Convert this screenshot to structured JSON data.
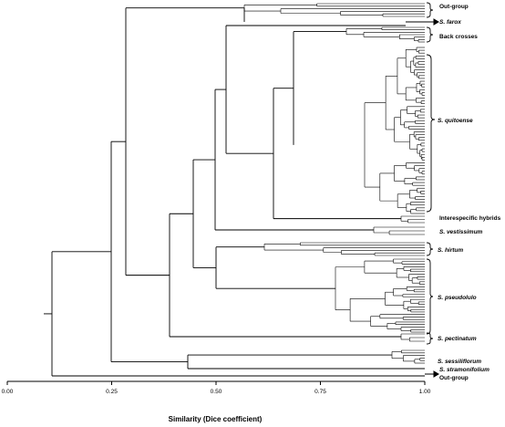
{
  "axis": {
    "title": "Similarity (Dice coefficient)",
    "ticks": [
      "0.00",
      "0.25",
      "0.50",
      "0.75",
      "1.00"
    ],
    "tick_values": [
      0,
      0.25,
      0.5,
      0.75,
      1.0
    ],
    "range": [
      0,
      1
    ]
  },
  "groups": [
    {
      "id": "outgroup-top",
      "label": "Out-group",
      "italic": false
    },
    {
      "id": "s-farox",
      "label": "S. farox",
      "italic": true
    },
    {
      "id": "back-crosses",
      "label": "Back crosses",
      "italic": false
    },
    {
      "id": "s-quitoense",
      "label": "S. quitoense",
      "italic": true
    },
    {
      "id": "interspecific-hybrids",
      "label": "Interespecific hybrids",
      "italic": false
    },
    {
      "id": "s-vestissimum",
      "label": "S. vestissimum",
      "italic": true
    },
    {
      "id": "s-hirtum",
      "label": "S. hirtum",
      "italic": true
    },
    {
      "id": "s-pseudolulo",
      "label": "S. pseudolulo",
      "italic": true
    },
    {
      "id": "s-pectinatum",
      "label": "S. pectinatum",
      "italic": true
    },
    {
      "id": "s-sessiliflorum",
      "label": "S. sessiliflorum",
      "italic": true
    },
    {
      "id": "s-stramonifolium",
      "label": "S. stramonifolium",
      "italic": true
    },
    {
      "id": "outgroup-bottom",
      "label": "Out-group",
      "italic": false
    }
  ],
  "colors": {
    "line": "#000000",
    "background": "#ffffff"
  }
}
